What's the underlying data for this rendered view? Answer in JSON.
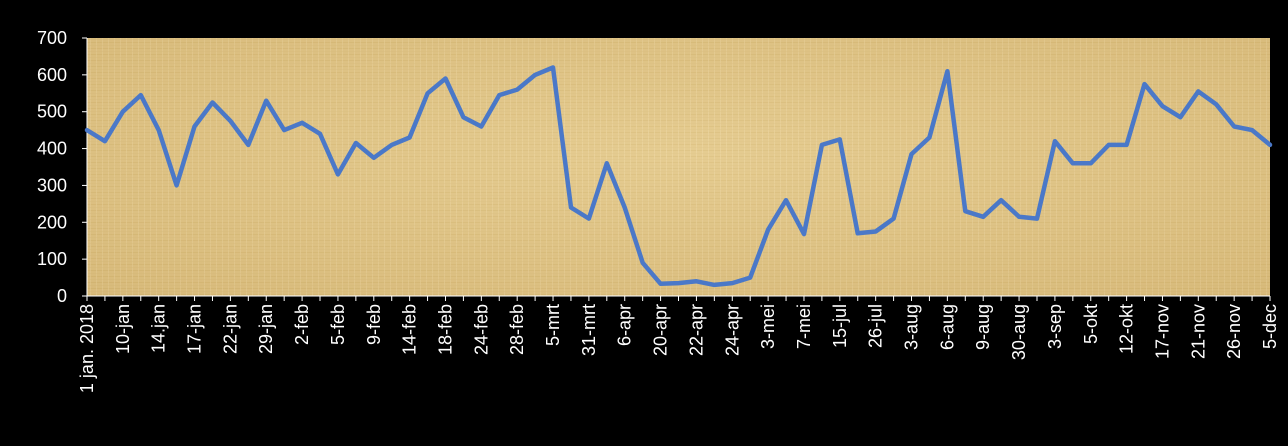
{
  "chart_data": {
    "type": "line",
    "title": "",
    "xlabel": "",
    "ylabel": "",
    "ylim": [
      0,
      700
    ],
    "yticks": [
      0,
      100,
      200,
      300,
      400,
      500,
      600,
      700
    ],
    "grid": false,
    "legend": "none",
    "colors": {
      "page_background": "#000000",
      "plot_background": "#e3c98a",
      "line": "#4a78c8",
      "text": "#ffffff"
    },
    "categories": [
      "1 jan. 2018",
      "",
      "10-jan",
      "",
      "14.jan",
      "",
      "17-jan",
      "",
      "22-jan",
      "",
      "29-jan",
      "",
      "2-feb",
      "",
      "5-feb",
      "",
      "9-feb",
      "",
      "14-feb",
      "",
      "18-feb",
      "",
      "24-feb",
      "",
      "28-feb",
      "",
      "5-mrt",
      "",
      "31-mrt",
      "",
      "6-apr",
      "",
      "20-apr",
      "",
      "22-apr",
      "",
      "24-apr",
      "",
      "3-mei",
      "",
      "7-mei",
      "",
      "15-jul",
      "",
      "26-jul",
      "",
      "3-aug",
      "",
      "6-aug",
      "",
      "9-aug",
      "",
      "30-aug",
      "",
      "3-sep",
      "",
      "5-okt",
      "",
      "12-okt",
      "",
      "17-nov",
      "",
      "21-nov",
      "",
      "26-nov",
      "",
      "5-dec"
    ],
    "series": [
      {
        "name": "",
        "values": [
          450,
          420,
          500,
          545,
          450,
          300,
          460,
          525,
          475,
          410,
          530,
          450,
          470,
          440,
          330,
          415,
          375,
          410,
          430,
          550,
          590,
          485,
          460,
          545,
          560,
          600,
          620,
          240,
          210,
          360,
          240,
          90,
          33,
          35,
          40,
          30,
          35,
          50,
          180,
          260,
          168,
          410,
          425,
          170,
          175,
          210,
          385,
          430,
          610,
          230,
          215,
          260,
          215,
          210,
          420,
          360,
          360,
          410,
          410,
          575,
          515,
          485,
          555,
          520,
          460,
          450,
          410
        ]
      }
    ]
  }
}
